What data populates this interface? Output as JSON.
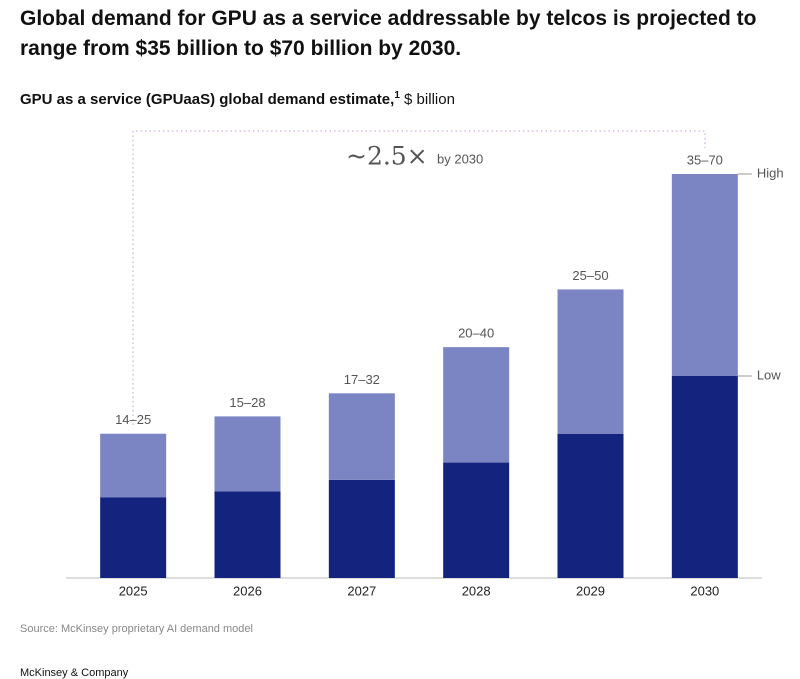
{
  "chart_data": {
    "type": "stacked_bar",
    "title": "Global demand for GPU as a service addressable by telcos is projected to range from $35 billion to $70 billion by 2030.",
    "subtitle": "GPU as a service (GPUaaS) global demand estimate,",
    "footnote_marker": "1",
    "unit": "$ billion",
    "annotation": "~2.5×",
    "annotation_note": "by 2030",
    "categories": [
      "2025",
      "2026",
      "2027",
      "2028",
      "2029",
      "2030"
    ],
    "series": [
      {
        "name": "Low",
        "color": "#13237e",
        "values": [
          14,
          15,
          17,
          20,
          25,
          35
        ]
      },
      {
        "name": "High",
        "color": "#7b85c3",
        "values": [
          11,
          13,
          15,
          20,
          25,
          35
        ]
      }
    ],
    "bar_labels": [
      "14–25",
      "15–28",
      "17–32",
      "20–40",
      "25–50",
      "35–70"
    ],
    "ylim": [
      0,
      70
    ],
    "source": "Source: McKinsey proprietary AI demand model",
    "footer": "McKinsey & Company"
  }
}
